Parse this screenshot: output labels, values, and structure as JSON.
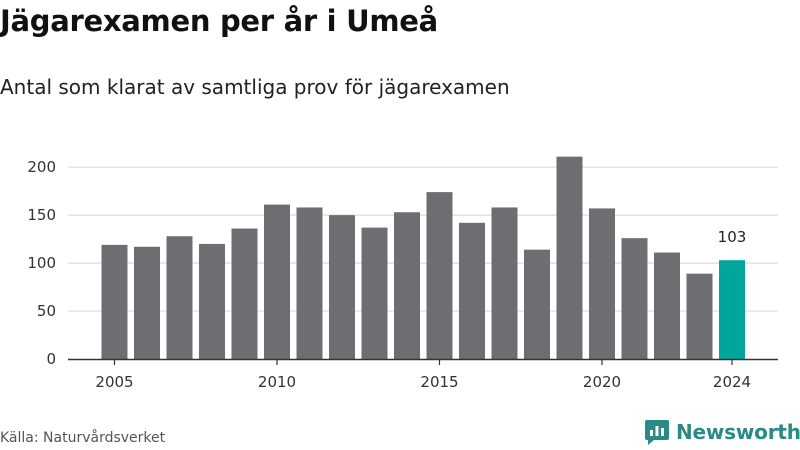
{
  "title": "Jägarexamen per år i Umeå",
  "subtitle": "Antal som klarat av samtliga prov för jägarexamen",
  "source": "Källa: Naturvårdsverket",
  "brand": {
    "name": "Newsworthy",
    "icon": "newsworthy-logo-icon",
    "color": "#2a8a86"
  },
  "colors": {
    "bar": "#6e6d72",
    "highlight": "#00a59b",
    "grid": "#dcdcdc",
    "axis": "#333333"
  },
  "chart_data": {
    "type": "bar",
    "title": "Jägarexamen per år i Umeå",
    "subtitle": "Antal som klarat av samtliga prov för jägarexamen",
    "xlabel": "",
    "ylabel": "",
    "categories": [
      2005,
      2006,
      2007,
      2008,
      2009,
      2010,
      2011,
      2012,
      2013,
      2014,
      2015,
      2016,
      2017,
      2018,
      2019,
      2020,
      2021,
      2022,
      2023,
      2024
    ],
    "values": [
      119,
      117,
      128,
      120,
      136,
      161,
      158,
      150,
      137,
      153,
      174,
      142,
      158,
      114,
      211,
      157,
      126,
      111,
      89,
      103
    ],
    "ylim": [
      0,
      220
    ],
    "yticks": [
      0,
      50,
      100,
      150,
      200
    ],
    "xtick_labels": [
      "2005",
      "2010",
      "2015",
      "2020",
      "2024"
    ],
    "highlight": {
      "category": 2024,
      "label": "103"
    },
    "grid": true,
    "legend": "none"
  }
}
